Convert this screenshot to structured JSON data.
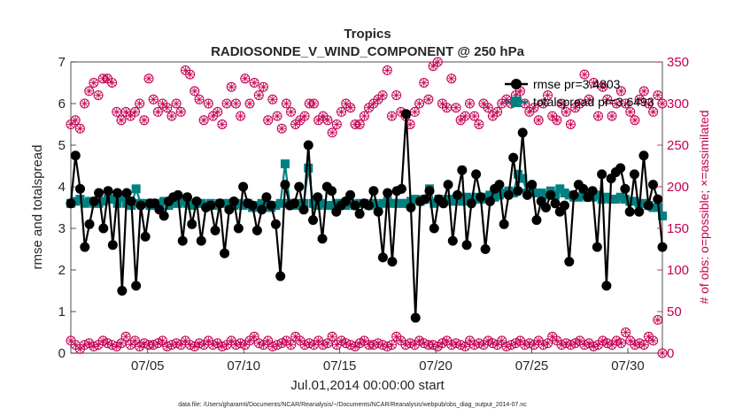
{
  "chart_data": {
    "type": "line",
    "title": "Tropics",
    "subtitle": "RADIOSONDE_V_WIND_COMPONENT @ 250 hPa",
    "xlabel": "Jul.01,2014 00:00:00 start",
    "ylabel": "rmse and totalspread",
    "y2label": "# of obs: o=possible; ×=assimilated",
    "x_tick_labels": [
      "07/05",
      "07/10",
      "07/15",
      "07/20",
      "07/25",
      "07/30"
    ],
    "x_tick_days": [
      5,
      10,
      15,
      20,
      25,
      30
    ],
    "xlim": [
      1,
      31.8
    ],
    "ylim": [
      0,
      7
    ],
    "y2lim": [
      0,
      350
    ],
    "y_ticks": [
      "0",
      "1",
      "2",
      "3",
      "4",
      "5",
      "6",
      "7"
    ],
    "y2_ticks": [
      "0",
      "50",
      "100",
      "150",
      "200",
      "250",
      "300",
      "350"
    ],
    "legend_position": "top-right",
    "series": [
      {
        "name": "rmse",
        "legend": "rmse pr=3.4803",
        "color": "#000000",
        "marker": "circle",
        "values": [
          3.6,
          4.75,
          3.95,
          2.55,
          3.1,
          3.65,
          3.85,
          3.0,
          3.9,
          2.6,
          3.85,
          1.5,
          3.85,
          3.65,
          1.62,
          3.55,
          2.8,
          3.6,
          3.6,
          3.45,
          3.3,
          3.65,
          3.75,
          3.8,
          2.7,
          3.75,
          3.1,
          3.65,
          2.7,
          3.5,
          3.55,
          2.95,
          3.6,
          2.4,
          3.45,
          3.65,
          3.0,
          4.0,
          3.6,
          3.55,
          2.95,
          3.45,
          3.75,
          3.55,
          3.1,
          1.85,
          4.05,
          3.55,
          3.6,
          4.0,
          3.45,
          5.0,
          3.2,
          3.75,
          2.75,
          4.0,
          3.9,
          3.4,
          3.55,
          3.65,
          3.8,
          3.55,
          3.35,
          3.6,
          3.55,
          3.9,
          3.4,
          2.3,
          3.85,
          2.2,
          3.9,
          3.95,
          5.75,
          3.5,
          0.85,
          3.65,
          3.7,
          3.9,
          3.0,
          3.7,
          3.6,
          4.05,
          2.7,
          3.8,
          4.4,
          2.6,
          3.6,
          4.3,
          3.75,
          2.5,
          3.65,
          3.95,
          4.05,
          3.1,
          3.8,
          4.7,
          3.9,
          5.3,
          3.8,
          4.05,
          3.2,
          3.65,
          3.5,
          3.8,
          3.6,
          3.4,
          3.55,
          2.2,
          3.8,
          4.05,
          3.95,
          3.75,
          3.9,
          2.55,
          4.3,
          1.62,
          4.2,
          4.35,
          4.45,
          3.95,
          3.4,
          4.3,
          3.4,
          4.75,
          3.55,
          4.05,
          3.7,
          2.55
        ],
        "values_note": "sampled every 6 hours from Jul.01"
      },
      {
        "name": "totalspread",
        "legend": "totalspread pr=3.6493",
        "color": "#008080",
        "marker": "square",
        "values": [
          3.6,
          3.65,
          3.7,
          3.6,
          3.65,
          3.6,
          3.6,
          3.65,
          3.7,
          3.7,
          3.6,
          3.75,
          3.6,
          3.55,
          3.95,
          3.6,
          3.6,
          3.55,
          3.6,
          3.6,
          3.65,
          3.55,
          3.6,
          3.6,
          3.65,
          3.6,
          3.55,
          3.6,
          3.6,
          3.55,
          3.6,
          3.55,
          3.6,
          3.6,
          3.6,
          3.55,
          3.6,
          3.55,
          3.6,
          3.5,
          3.55,
          3.6,
          3.55,
          3.5,
          3.55,
          3.6,
          4.55,
          3.6,
          3.55,
          3.6,
          3.6,
          4.45,
          3.6,
          3.55,
          3.6,
          3.55,
          3.55,
          3.6,
          3.6,
          3.55,
          3.6,
          3.55,
          3.6,
          3.6,
          3.55,
          3.6,
          3.55,
          3.6,
          3.65,
          3.6,
          3.6,
          3.6,
          3.6,
          3.65,
          3.7,
          3.65,
          3.7,
          3.95,
          3.6,
          3.7,
          3.65,
          3.7,
          3.65,
          3.7,
          3.65,
          3.75,
          3.7,
          3.75,
          3.7,
          3.75,
          3.8,
          3.75,
          3.8,
          3.85,
          3.9,
          3.85,
          4.3,
          4.2,
          3.85,
          3.9,
          3.85,
          3.85,
          3.8,
          3.9,
          3.8,
          3.95,
          3.85,
          3.8,
          3.75,
          3.75,
          3.8,
          3.75,
          3.75,
          3.8,
          3.7,
          3.75,
          3.7,
          3.7,
          3.75,
          3.7,
          3.65,
          3.65,
          3.6,
          3.6,
          3.55,
          3.5,
          3.5,
          3.3
        ]
      },
      {
        "name": "possible",
        "axis": "right",
        "color": "#c20052",
        "marker": "circle-plus",
        "values": [
          275,
          280,
          270,
          300,
          315,
          325,
          310,
          330,
          330,
          325,
          290,
          280,
          290,
          285,
          290,
          300,
          280,
          330,
          305,
          290,
          300,
          295,
          285,
          300,
          290,
          340,
          335,
          315,
          305,
          280,
          300,
          285,
          290,
          275,
          300,
          320,
          300,
          285,
          330,
          300,
          325,
          310,
          320,
          280,
          305,
          285,
          270,
          300,
          290,
          275,
          280,
          285,
          300,
          300,
          280,
          285,
          280,
          265,
          275,
          290,
          300,
          295,
          275,
          275,
          285,
          295,
          300,
          305,
          310,
          340,
          285,
          310,
          290,
          285,
          275,
          290,
          300,
          325,
          305,
          345,
          350,
          300,
          295,
          330,
          295,
          280,
          285,
          300,
          285,
          275,
          300,
          295,
          285,
          290,
          300,
          305,
          300,
          310,
          315,
          300,
          290,
          295,
          280,
          300,
          310,
          285,
          280,
          300,
          290,
          275,
          295,
          300,
          335,
          305,
          325,
          285,
          320,
          305,
          285,
          300,
          315,
          300,
          290,
          280,
          305,
          315,
          300,
          290,
          310,
          300
        ]
      },
      {
        "name": "assimilated",
        "axis": "right",
        "color": "#c20052",
        "marker": "x",
        "values": [
          15,
          10,
          5,
          10,
          12,
          8,
          10,
          15,
          12,
          10,
          8,
          12,
          20,
          10,
          15,
          8,
          12,
          10,
          10,
          12,
          15,
          8,
          10,
          12,
          10,
          15,
          10,
          8,
          12,
          10,
          15,
          10,
          12,
          8,
          10,
          15,
          10,
          12,
          10,
          15,
          20,
          12,
          10,
          15,
          8,
          10,
          12,
          15,
          10,
          20,
          15,
          10,
          12,
          10,
          15,
          10,
          12,
          20,
          10,
          15,
          12,
          10,
          8,
          12,
          15,
          10,
          10,
          12,
          10,
          8,
          10,
          20,
          15,
          10,
          12,
          10,
          15,
          12,
          10,
          10,
          8,
          12,
          15,
          10,
          12,
          10,
          8,
          15,
          10,
          12,
          10,
          15,
          12,
          10,
          15,
          8,
          10,
          12,
          15,
          10,
          12,
          10,
          15,
          10,
          12,
          20,
          15,
          10,
          12,
          10,
          12,
          15,
          10,
          12,
          8,
          10,
          15,
          12,
          10,
          15,
          12,
          25,
          15,
          10,
          12,
          10,
          20,
          15,
          40,
          0
        ]
      }
    ],
    "footer_text": "data file: /Users/gharamti/Documents/NCAR/Reanalysis/~/Documents/NCAR/Reanalysis/webpub/obs_diag_output_2014-07.nc"
  }
}
